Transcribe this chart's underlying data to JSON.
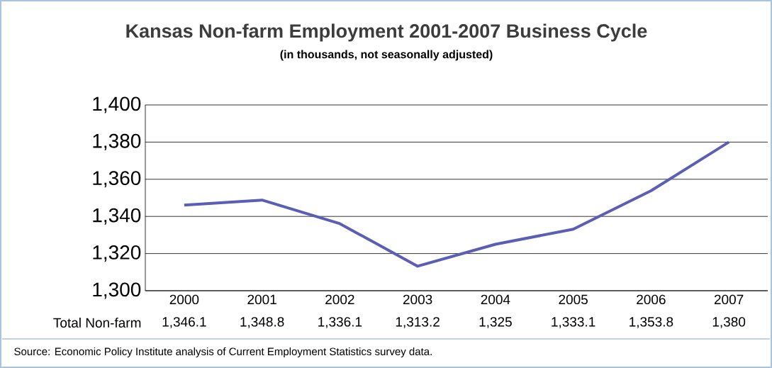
{
  "chart_data": {
    "type": "line",
    "title": "Kansas Non-farm Employment 2001-2007 Business Cycle",
    "subtitle": "(in thousands, not seasonally adjusted)",
    "categories": [
      "2000",
      "2001",
      "2002",
      "2003",
      "2004",
      "2005",
      "2006",
      "2007"
    ],
    "series": [
      {
        "name": "Total Non-farm",
        "color": "#5a5eb4",
        "values": [
          1346.1,
          1348.8,
          1336.1,
          1313.2,
          1325,
          1333.1,
          1353.8,
          1380
        ],
        "value_labels": [
          "1,346.1",
          "1,348.8",
          "1,336.1",
          "1,313.2",
          "1,325",
          "1,333.1",
          "1,353.8",
          "1,380"
        ]
      }
    ],
    "ylim": [
      1300,
      1400
    ],
    "yticks": [
      {
        "value": 1300,
        "label": "1,300"
      },
      {
        "value": 1320,
        "label": "1,320"
      },
      {
        "value": 1340,
        "label": "1,340"
      },
      {
        "value": 1360,
        "label": "1,360"
      },
      {
        "value": 1380,
        "label": "1,380"
      },
      {
        "value": 1400,
        "label": "1,400"
      }
    ],
    "grid": "y",
    "marker": "none",
    "line_style": "solid",
    "annotations": [
      "Source: Economic Policy Institute analysis of Current Employment Statistics survey data."
    ]
  }
}
